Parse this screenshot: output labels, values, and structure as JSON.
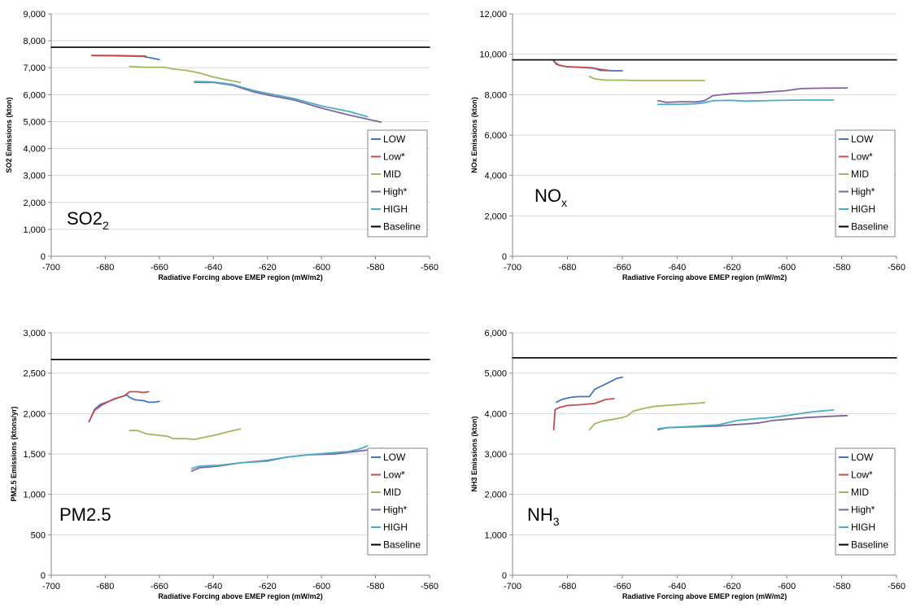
{
  "colors": {
    "LOW": "#4472c4",
    "Low*": "#c0504d",
    "MID": "#9bbb59",
    "High*": "#8064a2",
    "HIGH": "#4bacc6",
    "Baseline": "#000000"
  },
  "chart_data": [
    {
      "type": "line",
      "annotation": "SO2",
      "annotation_sub": "2",
      "xlabel": "Radiative Forcing above EMEP region (mW/m2)",
      "ylabel": "SO2 Emissions (kton)",
      "xlim": [
        -700,
        -560
      ],
      "ylim": [
        0,
        9000
      ],
      "xticks": [
        "-700",
        "-680",
        "-660",
        "-640",
        "-620",
        "-600",
        "-580",
        "-560"
      ],
      "yticks": [
        "0",
        "1,000",
        "2,000",
        "3,000",
        "4,000",
        "5,000",
        "6,000",
        "7,000",
        "8,000",
        "9,000"
      ],
      "legend_position": "bottom-right",
      "grid": true,
      "series": [
        {
          "name": "LOW",
          "points": [
            [
              -685,
              7450
            ],
            [
              -675,
              7440
            ],
            [
              -666,
              7420
            ],
            [
              -663,
              7360
            ],
            [
              -660,
              7300
            ]
          ]
        },
        {
          "name": "Low*",
          "points": [
            [
              -685,
              7460
            ],
            [
              -675,
              7450
            ],
            [
              -665,
              7430
            ]
          ]
        },
        {
          "name": "MID",
          "points": [
            [
              -671,
              7050
            ],
            [
              -665,
              7020
            ],
            [
              -658,
              7020
            ],
            [
              -655,
              6950
            ],
            [
              -650,
              6900
            ],
            [
              -645,
              6800
            ],
            [
              -640,
              6650
            ],
            [
              -635,
              6550
            ],
            [
              -630,
              6450
            ]
          ]
        },
        {
          "name": "High*",
          "points": [
            [
              -647,
              6460
            ],
            [
              -640,
              6450
            ],
            [
              -633,
              6350
            ],
            [
              -625,
              6100
            ],
            [
              -620,
              5990
            ],
            [
              -610,
              5800
            ],
            [
              -600,
              5500
            ],
            [
              -590,
              5250
            ],
            [
              -578,
              4980
            ]
          ]
        },
        {
          "name": "HIGH",
          "points": [
            [
              -647,
              6490
            ],
            [
              -640,
              6470
            ],
            [
              -633,
              6380
            ],
            [
              -625,
              6150
            ],
            [
              -620,
              6050
            ],
            [
              -610,
              5850
            ],
            [
              -600,
              5580
            ],
            [
              -590,
              5380
            ],
            [
              -583,
              5180
            ]
          ]
        },
        {
          "name": "Baseline",
          "points": [
            [
              -700,
              7760
            ],
            [
              -560,
              7760
            ]
          ]
        }
      ]
    },
    {
      "type": "line",
      "annotation": "NO",
      "annotation_sub": "x",
      "xlabel": "Radiative Forcing above EMEP region (mW/m2)",
      "ylabel": "NOx Emissions (kton)",
      "xlim": [
        -700,
        -560
      ],
      "ylim": [
        0,
        12000
      ],
      "xticks": [
        "-700",
        "-680",
        "-660",
        "-640",
        "-620",
        "-600",
        "-580",
        "-560"
      ],
      "yticks": [
        "0",
        "2,000",
        "4,000",
        "6,000",
        "8,000",
        "10,000",
        "12,000"
      ],
      "legend_position": "bottom-right",
      "grid": true,
      "series": [
        {
          "name": "LOW",
          "points": [
            [
              -685,
              9650
            ],
            [
              -683,
              9450
            ],
            [
              -680,
              9380
            ],
            [
              -675,
              9350
            ],
            [
              -670,
              9300
            ],
            [
              -668,
              9200
            ],
            [
              -663,
              9180
            ],
            [
              -660,
              9180
            ]
          ]
        },
        {
          "name": "Low*",
          "points": [
            [
              -685,
              9700
            ],
            [
              -684,
              9500
            ],
            [
              -681,
              9400
            ],
            [
              -676,
              9360
            ],
            [
              -671,
              9330
            ],
            [
              -668,
              9250
            ],
            [
              -665,
              9200
            ]
          ]
        },
        {
          "name": "MID",
          "points": [
            [
              -672,
              8900
            ],
            [
              -670,
              8780
            ],
            [
              -666,
              8720
            ],
            [
              -660,
              8720
            ],
            [
              -655,
              8700
            ],
            [
              -645,
              8700
            ],
            [
              -630,
              8700
            ]
          ]
        },
        {
          "name": "High*",
          "points": [
            [
              -647,
              7700
            ],
            [
              -644,
              7620
            ],
            [
              -638,
              7650
            ],
            [
              -633,
              7640
            ],
            [
              -630,
              7700
            ],
            [
              -627,
              7950
            ],
            [
              -620,
              8050
            ],
            [
              -610,
              8100
            ],
            [
              -600,
              8200
            ],
            [
              -595,
              8300
            ],
            [
              -588,
              8320
            ],
            [
              -578,
              8330
            ]
          ]
        },
        {
          "name": "HIGH",
          "points": [
            [
              -647,
              7520
            ],
            [
              -640,
              7520
            ],
            [
              -633,
              7550
            ],
            [
              -630,
              7600
            ],
            [
              -627,
              7700
            ],
            [
              -620,
              7720
            ],
            [
              -615,
              7680
            ],
            [
              -605,
              7710
            ],
            [
              -595,
              7730
            ],
            [
              -583,
              7730
            ]
          ]
        },
        {
          "name": "Baseline",
          "points": [
            [
              -700,
              9720
            ],
            [
              -560,
              9720
            ]
          ]
        }
      ]
    },
    {
      "type": "line",
      "annotation": "PM2.5",
      "annotation_sub": "",
      "xlabel": "Radiative Forcing above EMEP region (mW/m2)",
      "ylabel": "PM2.5 Emissions (ktons/yr)",
      "xlim": [
        -700,
        -560
      ],
      "ylim": [
        0,
        3000
      ],
      "xticks": [
        "-700",
        "-680",
        "-660",
        "-640",
        "-620",
        "-600",
        "-580",
        "-560"
      ],
      "yticks": [
        "0",
        "500",
        "1,000",
        "1,500",
        "2,000",
        "2,500",
        "3,000"
      ],
      "legend_position": "bottom-right",
      "grid": true,
      "series": [
        {
          "name": "LOW",
          "points": [
            [
              -686,
              1900
            ],
            [
              -684,
              2050
            ],
            [
              -682,
              2110
            ],
            [
              -678,
              2160
            ],
            [
              -675,
              2200
            ],
            [
              -672,
              2230
            ],
            [
              -671,
              2200
            ],
            [
              -669,
              2170
            ],
            [
              -666,
              2160
            ],
            [
              -664,
              2140
            ],
            [
              -662,
              2140
            ],
            [
              -660,
              2150
            ]
          ]
        },
        {
          "name": "Low*",
          "points": [
            [
              -686,
              1900
            ],
            [
              -684,
              2040
            ],
            [
              -681,
              2110
            ],
            [
              -677,
              2180
            ],
            [
              -673,
              2220
            ],
            [
              -671,
              2270
            ],
            [
              -668,
              2270
            ],
            [
              -666,
              2260
            ],
            [
              -664,
              2270
            ]
          ]
        },
        {
          "name": "MID",
          "points": [
            [
              -671,
              1790
            ],
            [
              -668,
              1790
            ],
            [
              -665,
              1750
            ],
            [
              -660,
              1730
            ],
            [
              -657,
              1720
            ],
            [
              -655,
              1690
            ],
            [
              -650,
              1690
            ],
            [
              -647,
              1680
            ],
            [
              -640,
              1730
            ],
            [
              -634,
              1780
            ],
            [
              -630,
              1810
            ]
          ]
        },
        {
          "name": "High*",
          "points": [
            [
              -648,
              1290
            ],
            [
              -645,
              1330
            ],
            [
              -638,
              1350
            ],
            [
              -630,
              1390
            ],
            [
              -620,
              1420
            ],
            [
              -613,
              1460
            ],
            [
              -605,
              1490
            ],
            [
              -595,
              1500
            ],
            [
              -590,
              1520
            ],
            [
              -585,
              1540
            ],
            [
              -578,
              1570
            ]
          ]
        },
        {
          "name": "HIGH",
          "points": [
            [
              -648,
              1320
            ],
            [
              -645,
              1350
            ],
            [
              -638,
              1360
            ],
            [
              -630,
              1390
            ],
            [
              -620,
              1410
            ],
            [
              -613,
              1460
            ],
            [
              -605,
              1490
            ],
            [
              -598,
              1510
            ],
            [
              -590,
              1530
            ],
            [
              -586,
              1560
            ],
            [
              -583,
              1600
            ]
          ]
        },
        {
          "name": "Baseline",
          "points": [
            [
              -700,
              2670
            ],
            [
              -560,
              2670
            ]
          ]
        }
      ]
    },
    {
      "type": "line",
      "annotation": "NH",
      "annotation_sub": "3",
      "xlabel": "Radiative Forcing above EMEP region (mW/m2)",
      "ylabel": "NH3 Emissions (kton)",
      "xlim": [
        -700,
        -560
      ],
      "ylim": [
        0,
        6000
      ],
      "xticks": [
        "-700",
        "-680",
        "-660",
        "-640",
        "-620",
        "-600",
        "-580",
        "-560"
      ],
      "yticks": [
        "0",
        "1,000",
        "2,000",
        "3,000",
        "4,000",
        "5,000",
        "6,000"
      ],
      "legend_position": "bottom-right",
      "grid": true,
      "series": [
        {
          "name": "LOW",
          "points": [
            [
              -684,
              4280
            ],
            [
              -682,
              4350
            ],
            [
              -679,
              4400
            ],
            [
              -676,
              4420
            ],
            [
              -672,
              4420
            ],
            [
              -670,
              4600
            ],
            [
              -667,
              4700
            ],
            [
              -664,
              4800
            ],
            [
              -662,
              4870
            ],
            [
              -660,
              4900
            ]
          ]
        },
        {
          "name": "Low*",
          "points": [
            [
              -685,
              3600
            ],
            [
              -684.5,
              4100
            ],
            [
              -683,
              4150
            ],
            [
              -680,
              4200
            ],
            [
              -675,
              4220
            ],
            [
              -670,
              4250
            ],
            [
              -668,
              4300
            ],
            [
              -666,
              4350
            ],
            [
              -663,
              4370
            ]
          ]
        },
        {
          "name": "MID",
          "points": [
            [
              -672,
              3600
            ],
            [
              -670,
              3750
            ],
            [
              -667,
              3820
            ],
            [
              -663,
              3860
            ],
            [
              -660,
              3900
            ],
            [
              -658,
              3950
            ],
            [
              -656,
              4060
            ],
            [
              -652,
              4130
            ],
            [
              -648,
              4180
            ],
            [
              -640,
              4220
            ],
            [
              -630,
              4270
            ]
          ]
        },
        {
          "name": "High*",
          "points": [
            [
              -647,
              3600
            ],
            [
              -644,
              3650
            ],
            [
              -635,
              3670
            ],
            [
              -625,
              3690
            ],
            [
              -620,
              3720
            ],
            [
              -615,
              3740
            ],
            [
              -610,
              3770
            ],
            [
              -605,
              3830
            ],
            [
              -598,
              3870
            ],
            [
              -593,
              3900
            ],
            [
              -585,
              3930
            ],
            [
              -578,
              3950
            ]
          ]
        },
        {
          "name": "HIGH",
          "points": [
            [
              -647,
              3620
            ],
            [
              -644,
              3650
            ],
            [
              -635,
              3680
            ],
            [
              -625,
              3720
            ],
            [
              -618,
              3830
            ],
            [
              -612,
              3870
            ],
            [
              -606,
              3900
            ],
            [
              -600,
              3950
            ],
            [
              -595,
              4000
            ],
            [
              -590,
              4050
            ],
            [
              -583,
              4090
            ]
          ]
        },
        {
          "name": "Baseline",
          "points": [
            [
              -700,
              5380
            ],
            [
              -560,
              5380
            ]
          ]
        }
      ]
    }
  ]
}
